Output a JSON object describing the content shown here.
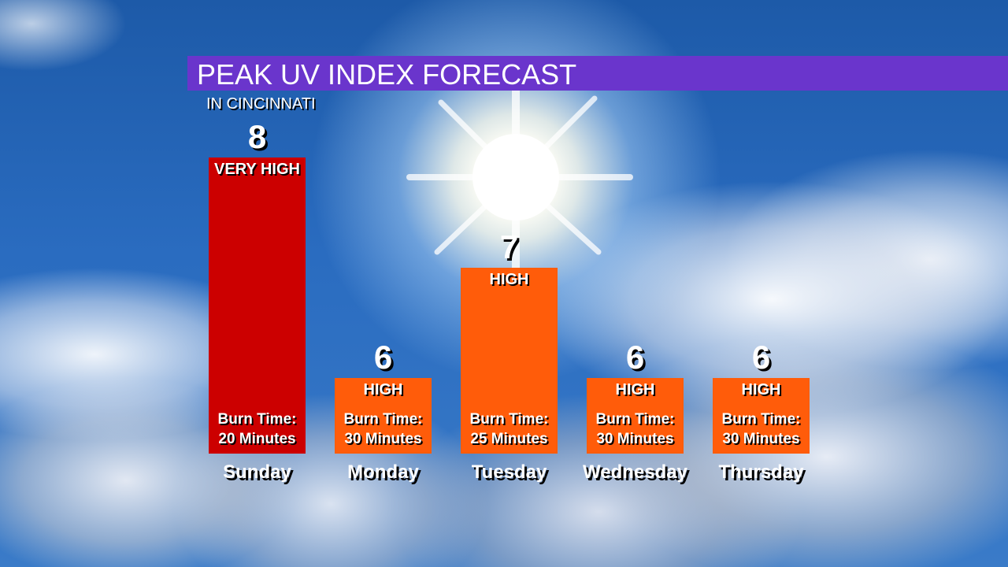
{
  "title": "PEAK UV INDEX FORECAST",
  "subtitle": "IN CINCINNATI",
  "colors": {
    "header_bar": "#6a35cc",
    "very_high": "#cc0000",
    "high": "#ff5c0a"
  },
  "chart_data": {
    "type": "bar",
    "title": "PEAK UV INDEX FORECAST",
    "subtitle": "IN CINCINNATI",
    "xlabel": "",
    "ylabel": "",
    "categories": [
      "Sunday",
      "Monday",
      "Tuesday",
      "Wednesday",
      "Thursday"
    ],
    "values": [
      8,
      6,
      7,
      6,
      6
    ],
    "bars": [
      {
        "day": "Sunday",
        "value": 8,
        "level": "VERY HIGH",
        "burn_label": "Burn Time:",
        "burn_time": "20 Minutes",
        "color": "#cc0000"
      },
      {
        "day": "Monday",
        "value": 6,
        "level": "HIGH",
        "burn_label": "Burn Time:",
        "burn_time": "30 Minutes",
        "color": "#ff5c0a"
      },
      {
        "day": "Tuesday",
        "value": 7,
        "level": "HIGH",
        "burn_label": "Burn Time:",
        "burn_time": "25 Minutes",
        "color": "#ff5c0a"
      },
      {
        "day": "Wednesday",
        "value": 6,
        "level": "HIGH",
        "burn_label": "Burn Time:",
        "burn_time": "30 Minutes",
        "color": "#ff5c0a"
      },
      {
        "day": "Thursday",
        "value": 6,
        "level": "HIGH",
        "burn_label": "Burn Time:",
        "burn_time": "30 Minutes",
        "color": "#ff5c0a"
      }
    ],
    "grid": false
  }
}
